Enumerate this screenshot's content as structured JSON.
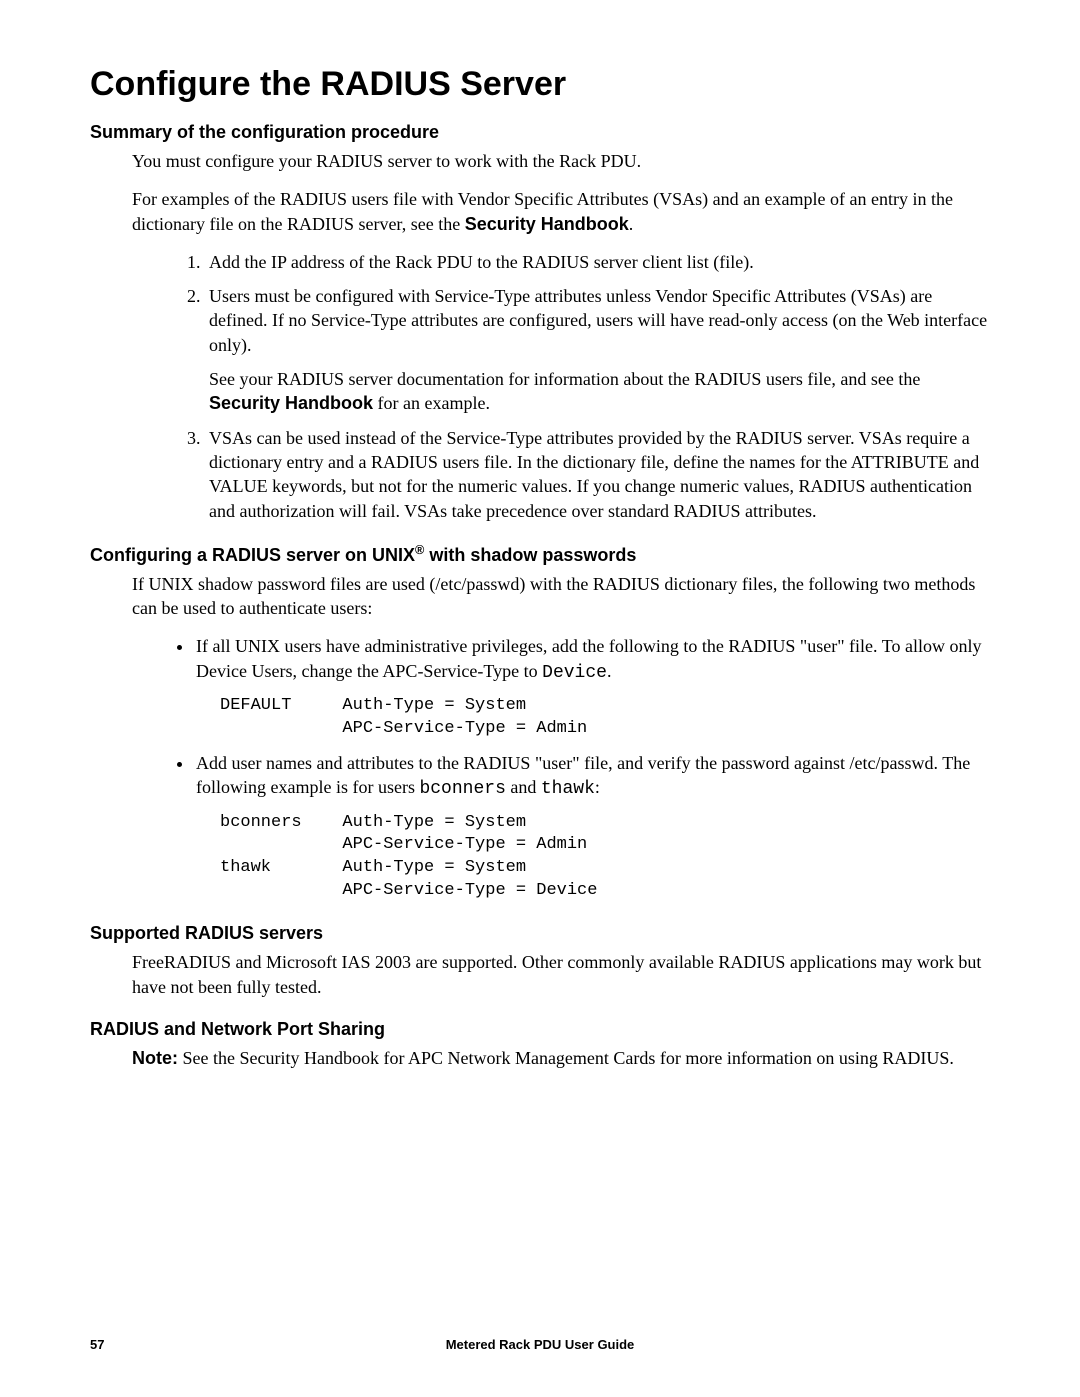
{
  "title": "Configure the RADIUS Server",
  "sections": {
    "summary": {
      "heading": "Summary of the configuration procedure",
      "p1": "You must configure your RADIUS server to work with the Rack PDU.",
      "p2_pre": "For examples of the RADIUS users file with Vendor Specific Attributes (VSAs) and an example of an entry in the dictionary file on the RADIUS server, see the ",
      "p2_bold": "Security Handbook",
      "p2_post": ".",
      "li1": "Add the IP address of the Rack PDU to the RADIUS server client list (file).",
      "li2": "Users must be configured with Service-Type attributes unless Vendor Specific Attributes (VSAs) are defined. If no Service-Type attributes are configured, users will have read-only access (on the Web interface only).",
      "li2_sub_pre": "See your RADIUS server documentation for information about the RADIUS users file, and see the ",
      "li2_sub_bold": "Security Handbook",
      "li2_sub_post": " for an example.",
      "li3": "VSAs can be used instead of the Service-Type attributes provided by the RADIUS server. VSAs require a dictionary entry and a RADIUS users file. In the dictionary file, define the names for the ATTRIBUTE and VALUE keywords, but not for the numeric values. If you change numeric values, RADIUS authentication and authorization will fail. VSAs take precedence over standard RADIUS attributes."
    },
    "unix": {
      "heading_pre": "Configuring a RADIUS server on UNIX",
      "heading_sup": "®",
      "heading_post": " with shadow passwords",
      "p1": "If UNIX shadow password files are used (/etc/passwd) with the RADIUS dictionary files, the following two methods can be used to authenticate users:",
      "b1_pre": "If all UNIX users have administrative privileges, add the following to the RADIUS \"user\" file. To allow only Device Users, change the APC-Service-Type to ",
      "b1_code": "Device",
      "b1_post": ".",
      "code1": "DEFAULT     Auth-Type = System\n            APC-Service-Type = Admin",
      "b2_pre": "Add user names and attributes to the RADIUS \"user\" file, and verify the password against /etc/passwd. The following example is for users ",
      "b2_code1": "bconners",
      "b2_mid": " and ",
      "b2_code2": "thawk",
      "b2_post": ":",
      "code2": "bconners    Auth-Type = System\n            APC-Service-Type = Admin\nthawk       Auth-Type = System\n            APC-Service-Type = Device"
    },
    "supported": {
      "heading": "Supported RADIUS servers",
      "p1": "FreeRADIUS and Microsoft IAS 2003 are supported. Other commonly available RADIUS applications may work but have not been fully tested."
    },
    "portsharing": {
      "heading": "RADIUS and Network Port Sharing",
      "note_label": "Note:",
      "note_text": " See the  Security Handbook for APC Network Management Cards for more information on using RADIUS."
    }
  },
  "footer": {
    "page": "57",
    "title": "Metered Rack PDU User Guide"
  }
}
